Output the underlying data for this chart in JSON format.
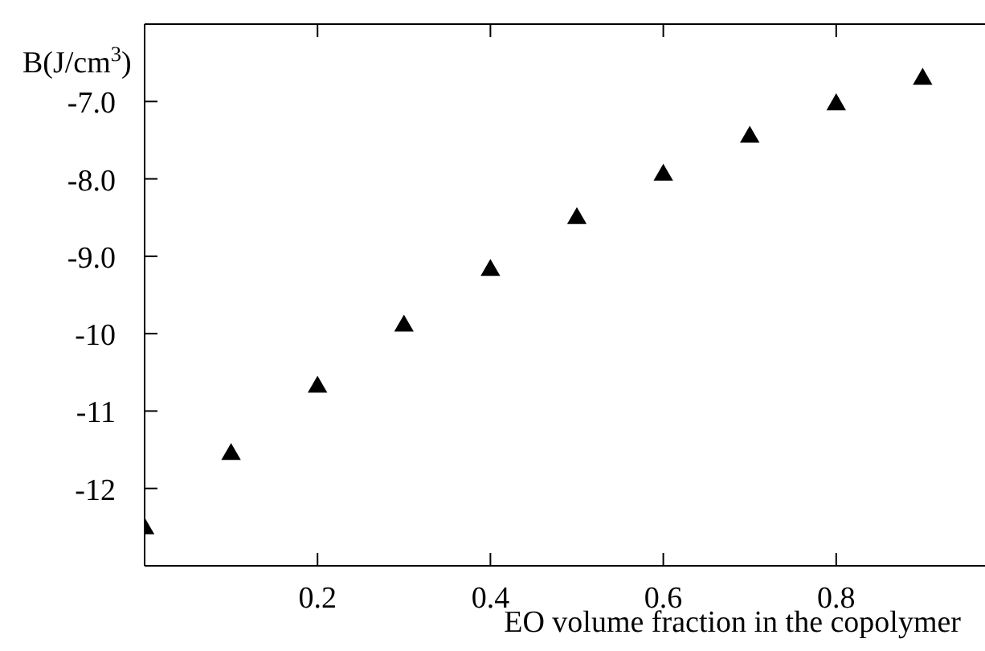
{
  "chart_data": {
    "type": "scatter",
    "xlabel": "EO volume fraction in the copolymer",
    "ylabel": "B(J/cm$^{3}$)",
    "x": [
      0,
      0.1,
      0.2,
      0.3,
      0.4,
      0.5,
      0.6,
      0.7,
      0.8,
      0.9
    ],
    "series": [
      {
        "color": "#000000",
        "values": [
          -12.52,
          -11.56,
          -10.69,
          -9.9,
          -9.18,
          -8.51,
          -7.95,
          -7.46,
          -7.04,
          -6.71
        ]
      }
    ],
    "xlim": [
      0,
      1
    ],
    "xticks": [
      0.2,
      0.4,
      0.6,
      0.8
    ],
    "ylim": [
      -13,
      -6
    ],
    "yticks": [
      {
        "value": -7,
        "label": "-7.0"
      },
      {
        "value": -8,
        "label": "-8.0"
      },
      {
        "value": -9,
        "label": "-9.0"
      },
      -10,
      -11,
      -12
    ],
    "marker": "triangle"
  }
}
